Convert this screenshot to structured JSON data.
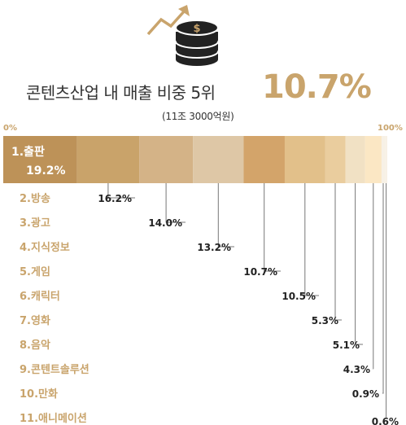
{
  "header": {
    "title": "콘텐츠산업 내 매출 비중 5위",
    "highlight": "10.7%",
    "subtitle": "(11조 3000억원)",
    "coin_symbol": "$"
  },
  "axis": {
    "left": "0%",
    "right": "100%"
  },
  "colors": {
    "accent": "#c9a46c",
    "segments": [
      "#bd9258",
      "#c9a36a",
      "#d4b387",
      "#dec7a6",
      "#d3a46a",
      "#e2c08a",
      "#eacd9e",
      "#f1e1c4",
      "#fbe7c4",
      "#f7f1e6"
    ]
  },
  "chart_data": {
    "type": "bar",
    "title": "콘텐츠산업 내 매출 비중",
    "xlim": [
      0,
      100
    ],
    "categories": [
      "1.출판",
      "2.방송",
      "3.광고",
      "4.지식정보",
      "5.게임",
      "6.캐릭터",
      "7.영화",
      "8.음악",
      "9.콘텐트솔루션",
      "10.만화",
      "11.애니메이션"
    ],
    "values": [
      19.2,
      16.2,
      14.0,
      13.2,
      10.7,
      10.5,
      5.3,
      5.1,
      4.3,
      0.9,
      0.6
    ],
    "value_labels": [
      "19.2%",
      "16.2%",
      "14.0%",
      "13.2%",
      "10.7%",
      "10.5%",
      "5.3%",
      "5.1%",
      "4.3%",
      "0.9%",
      "0.6%"
    ]
  }
}
